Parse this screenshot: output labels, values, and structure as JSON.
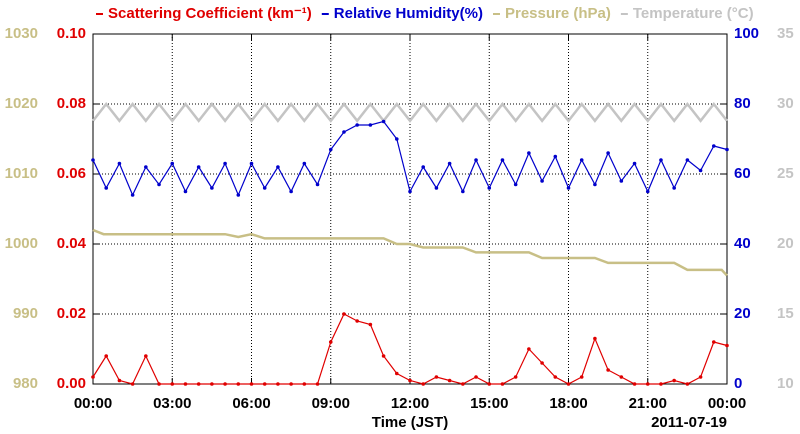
{
  "chart_data": {
    "type": "line",
    "xlabel": "Time (JST)",
    "date_label": "2011-07-19",
    "xlim": [
      0,
      24
    ],
    "xticks": [
      {
        "value": 0,
        "label": "00:00"
      },
      {
        "value": 3,
        "label": "03:00"
      },
      {
        "value": 6,
        "label": "06:00"
      },
      {
        "value": 9,
        "label": "09:00"
      },
      {
        "value": 12,
        "label": "12:00"
      },
      {
        "value": 15,
        "label": "15:00"
      },
      {
        "value": 18,
        "label": "18:00"
      },
      {
        "value": 21,
        "label": "21:00"
      },
      {
        "value": 24,
        "label": "00:00"
      }
    ],
    "ylim": [
      0,
      0.1
    ],
    "yticks": [
      {
        "value": 0,
        "label": "0.00"
      },
      {
        "value": 0.02,
        "label": "0.02"
      },
      {
        "value": 0.04,
        "label": "0.04"
      },
      {
        "value": 0.06,
        "label": "0.06"
      },
      {
        "value": 0.08,
        "label": "0.08"
      },
      {
        "value": 0.1,
        "label": "0.10"
      }
    ],
    "y2lim": [
      0,
      100
    ],
    "y2ticks": [
      0,
      20,
      40,
      60,
      80,
      100
    ],
    "y3lim": [
      980,
      1030
    ],
    "y3ticks": [
      980,
      990,
      1000,
      1010,
      1020,
      1030
    ],
    "y4lim": [
      10,
      35
    ],
    "y4ticks": [
      10,
      15,
      20,
      25,
      30,
      35
    ],
    "grid": true,
    "series": [
      {
        "name": "Temperature (°C)",
        "color": "#c4c4c4",
        "axis": "y4",
        "markers": false,
        "x": [
          0,
          0.5,
          1,
          1.5,
          2,
          2.5,
          3,
          3.5,
          4,
          4.5,
          5,
          5.5,
          6,
          6.5,
          7,
          7.5,
          8,
          8.5,
          9,
          9.5,
          10,
          10.5,
          11,
          11.5,
          12,
          12.5,
          13,
          13.5,
          14,
          14.5,
          15,
          15.5,
          16,
          16.5,
          17,
          17.5,
          18,
          18.5,
          19,
          19.5,
          20,
          20.5,
          21,
          21.5,
          22,
          22.5,
          23,
          23.5,
          24
        ],
        "values": [
          28.8,
          30,
          28.8,
          30,
          28.8,
          30,
          28.8,
          30,
          28.8,
          30,
          28.8,
          30,
          28.8,
          30,
          28.8,
          30,
          28.8,
          30,
          28.8,
          30,
          28.8,
          30,
          28.8,
          30,
          28.8,
          30,
          28.8,
          30,
          28.8,
          30,
          28.8,
          30,
          28.8,
          30,
          28.8,
          30,
          28.8,
          30,
          28.8,
          30,
          28.8,
          30,
          28.8,
          30,
          28.8,
          30,
          28.8,
          30,
          28.8
        ]
      },
      {
        "name": "Pressure (hPa)",
        "color": "#c8bf86",
        "axis": "y3",
        "markers": false,
        "x": [
          0,
          0.4,
          1,
          2,
          3,
          4,
          5,
          5.5,
          6,
          6.5,
          7,
          8,
          9,
          10,
          11,
          11.5,
          12,
          12.5,
          13,
          14,
          14.5,
          15,
          16,
          16.5,
          17,
          17.5,
          18,
          19,
          19.5,
          20,
          21,
          22,
          22.5,
          23,
          23.8,
          24
        ],
        "values": [
          1002,
          1001.4,
          1001.4,
          1001.4,
          1001.4,
          1001.4,
          1001.4,
          1001,
          1001.4,
          1000.8,
          1000.8,
          1000.8,
          1000.8,
          1000.8,
          1000.8,
          1000,
          1000,
          999.5,
          999.5,
          999.5,
          998.8,
          998.8,
          998.8,
          998.8,
          998,
          998,
          998,
          998,
          997.3,
          997.3,
          997.3,
          997.3,
          996.3,
          996.3,
          996.3,
          995.5
        ]
      },
      {
        "name": "Relative Humidity(%)",
        "color": "#0000cc",
        "axis": "y2",
        "markers": true,
        "x": [
          0,
          0.5,
          1,
          1.5,
          2,
          2.5,
          3,
          3.5,
          4,
          4.5,
          5,
          5.5,
          6,
          6.5,
          7,
          7.5,
          8,
          8.5,
          9,
          9.5,
          10,
          10.5,
          11,
          11.5,
          12,
          12.5,
          13,
          13.5,
          14,
          14.5,
          15,
          15.5,
          16,
          16.5,
          17,
          17.5,
          18,
          18.5,
          19,
          19.5,
          20,
          20.5,
          21,
          21.5,
          22,
          22.5,
          23,
          23.5,
          24
        ],
        "values": [
          64,
          56,
          63,
          54,
          62,
          57,
          63,
          55,
          62,
          56,
          63,
          54,
          63,
          56,
          62,
          55,
          63,
          57,
          67,
          72,
          74,
          74,
          75,
          70,
          55,
          62,
          56,
          63,
          55,
          64,
          56,
          64,
          57,
          66,
          58,
          65,
          56,
          64,
          57,
          66,
          58,
          63,
          55,
          64,
          56,
          64,
          61,
          68,
          67
        ]
      },
      {
        "name": "Scattering Coefficient (km⁻¹)",
        "color": "#e00000",
        "axis": "y",
        "markers": true,
        "x": [
          0,
          0.5,
          1,
          1.5,
          2,
          2.5,
          3,
          3.5,
          4,
          4.5,
          5,
          5.5,
          6,
          6.5,
          7,
          7.5,
          8,
          8.5,
          9,
          9.5,
          10,
          10.5,
          11,
          11.5,
          12,
          12.5,
          13,
          13.5,
          14,
          14.5,
          15,
          15.5,
          16,
          16.5,
          17,
          17.5,
          18,
          18.5,
          19,
          19.5,
          20,
          20.5,
          21,
          21.5,
          22,
          22.5,
          23,
          23.5,
          24
        ],
        "values": [
          0.002,
          0.008,
          0.001,
          0,
          0.008,
          0,
          0,
          0,
          0,
          0,
          0,
          0,
          0,
          0,
          0,
          0,
          0,
          0,
          0.012,
          0.02,
          0.018,
          0.017,
          0.008,
          0.003,
          0.001,
          0,
          0.002,
          0.001,
          0,
          0.002,
          0,
          0,
          0.002,
          0.01,
          0.006,
          0.002,
          0,
          0.002,
          0.013,
          0.004,
          0.002,
          0,
          0,
          0,
          0.001,
          0,
          0.002,
          0.012,
          0.011
        ]
      }
    ]
  }
}
